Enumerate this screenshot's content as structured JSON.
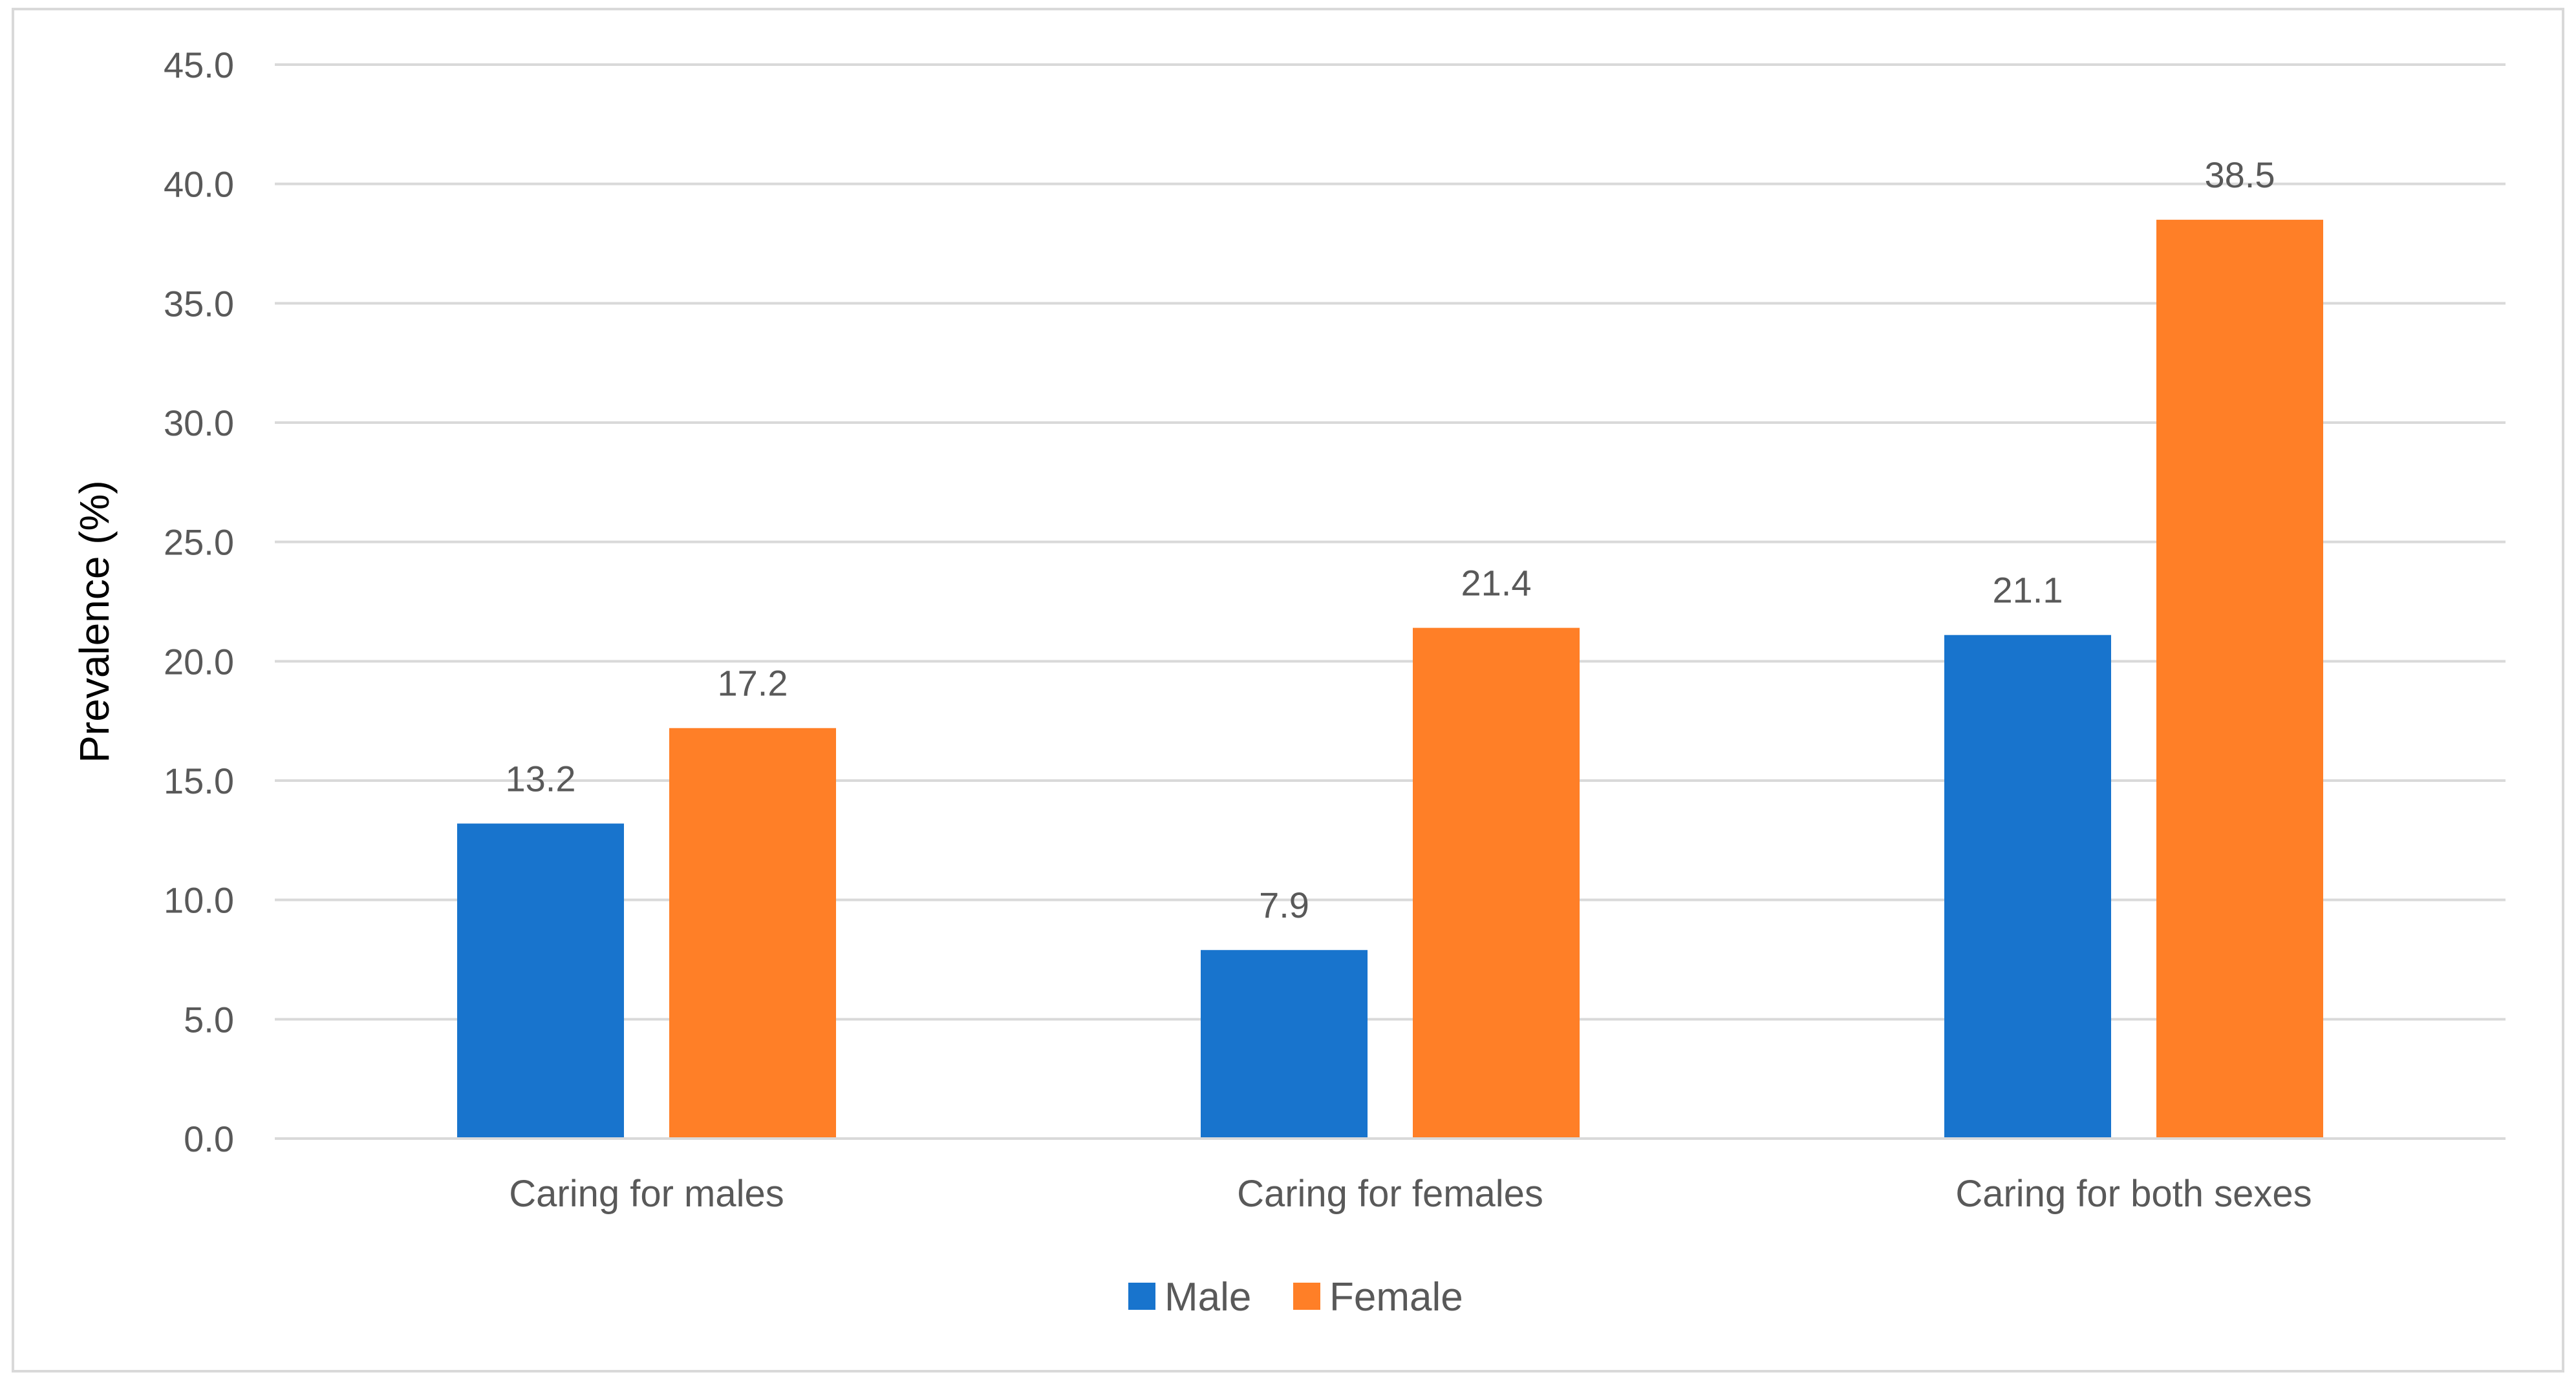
{
  "chart_data": {
    "type": "bar",
    "title": "",
    "xlabel": "",
    "ylabel": "Prevalence (%)",
    "ylim": [
      0,
      45
    ],
    "ytick_step": 5,
    "ytick_labels": [
      "0.0",
      "5.0",
      "10.0",
      "15.0",
      "20.0",
      "25.0",
      "30.0",
      "35.0",
      "40.0",
      "45.0"
    ],
    "grid": true,
    "legend_position": "bottom",
    "categories": [
      "Caring for males",
      "Caring for females",
      "Caring for both sexes"
    ],
    "series": [
      {
        "name": "Male",
        "color": "#1874CD",
        "values": [
          13.2,
          7.9,
          21.1
        ],
        "labels": [
          "13.2",
          "7.9",
          "21.1"
        ]
      },
      {
        "name": "Female",
        "color": "#FF7F27",
        "values": [
          17.2,
          21.4,
          38.5
        ],
        "labels": [
          "17.2",
          "21.4",
          "38.5"
        ]
      }
    ]
  }
}
